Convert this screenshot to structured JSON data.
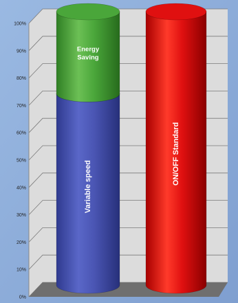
{
  "chart_data": {
    "type": "bar",
    "stacked": true,
    "style": "3d-cylinder",
    "categories": [
      "Variable speed",
      "ON/OFF Standard"
    ],
    "series": [
      {
        "name": "Variable speed",
        "values": [
          70,
          0
        ],
        "color": "#4a55b3"
      },
      {
        "name": "Energy Saving",
        "values": [
          30,
          0
        ],
        "color": "#4aa63a"
      },
      {
        "name": "ON/OFF Standard",
        "values": [
          0,
          100
        ],
        "color": "#e01010"
      }
    ],
    "bar_labels": [
      "Variable speed",
      "Energy\nSaving",
      "ON/OFF Standard"
    ],
    "yticks": [
      "0%",
      "10%",
      "20%",
      "30%",
      "40%",
      "50%",
      "60%",
      "70%",
      "80%",
      "90%",
      "100%"
    ],
    "ylim": [
      0,
      100
    ],
    "grid": true,
    "colors": {
      "background": "#8fb0dc",
      "wall": "#dcdcdc",
      "floor": "#6f6f6f",
      "gridline": "#7a7a7a"
    }
  }
}
